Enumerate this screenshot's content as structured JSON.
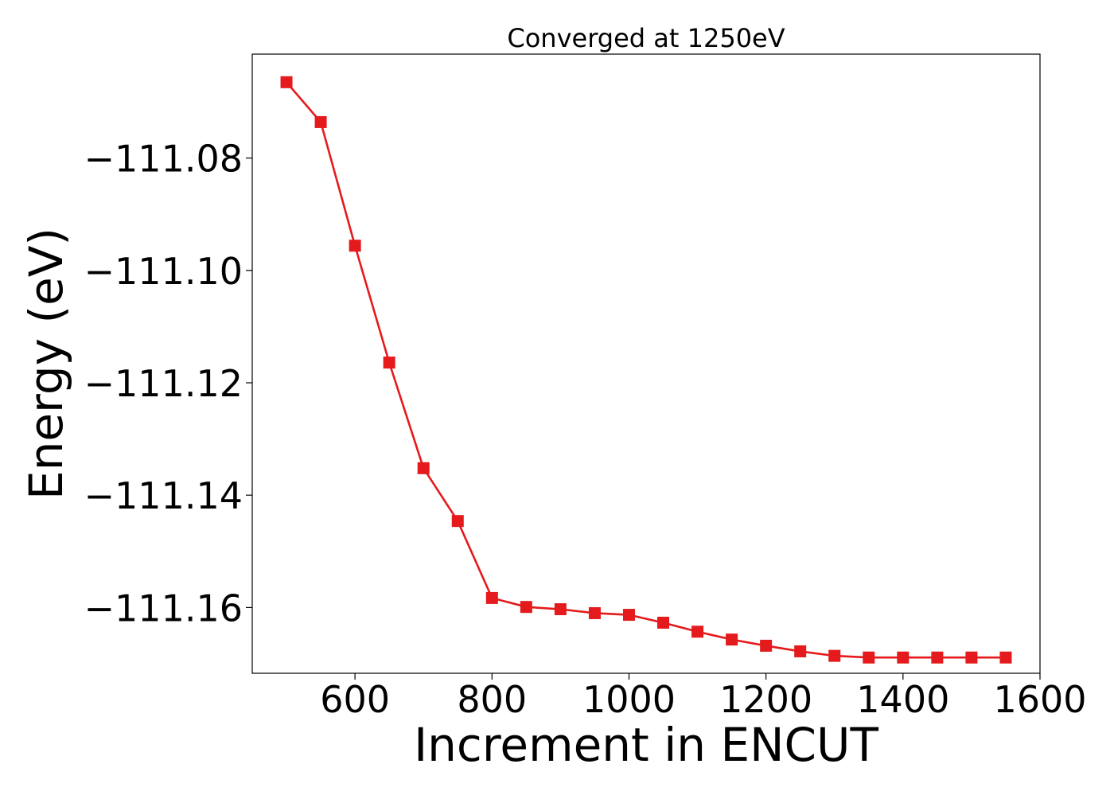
{
  "chart_data": {
    "type": "line",
    "title": "Converged at 1250eV",
    "xlabel": "Increment in ENCUT",
    "ylabel": "Energy (eV)",
    "xlim": [
      450,
      1600
    ],
    "ylim": [
      -111.1717,
      -111.0615
    ],
    "x_ticks": [
      600,
      800,
      1000,
      1200,
      1400,
      1600
    ],
    "x_tick_labels": [
      "600",
      "800",
      "1000",
      "1200",
      "1400",
      "1600"
    ],
    "y_ticks": [
      -111.08,
      -111.1,
      -111.12,
      -111.14,
      -111.16
    ],
    "y_tick_labels": [
      "−111.08",
      "−111.10",
      "−111.12",
      "−111.14",
      "−111.16"
    ],
    "grid": false,
    "series": [
      {
        "color": "#e41a1c",
        "marker": "square",
        "x": [
          500,
          550,
          600,
          650,
          700,
          750,
          800,
          850,
          900,
          950,
          1000,
          1050,
          1100,
          1150,
          1200,
          1250,
          1300,
          1350,
          1400,
          1450,
          1500,
          1550
        ],
        "y": [
          -111.0665,
          -111.0736,
          -111.0956,
          -111.1164,
          -111.1352,
          -111.1446,
          -111.1583,
          -111.1599,
          -111.1603,
          -111.161,
          -111.1613,
          -111.1627,
          -111.1643,
          -111.1657,
          -111.1668,
          -111.1678,
          -111.1686,
          -111.1689,
          -111.1689,
          -111.1689,
          -111.1689,
          -111.1689
        ]
      }
    ]
  }
}
